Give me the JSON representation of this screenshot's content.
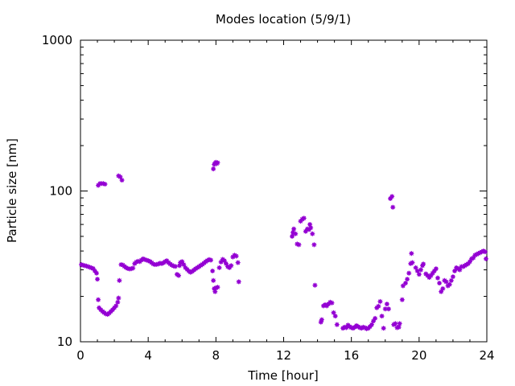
{
  "chart_data": {
    "type": "scatter",
    "title": "Modes location (5/9/1)",
    "xlabel": "Time [hour]",
    "ylabel": "Particle size [nm]",
    "xlim": [
      0,
      24
    ],
    "ylim": [
      10,
      1000
    ],
    "yscale": "log",
    "grid": false,
    "legend": "none",
    "marker_color": "#9400d3",
    "marker": "asterisk",
    "x_ticks": [
      0,
      4,
      8,
      12,
      16,
      20,
      24
    ],
    "x_tick_labels": [
      "0",
      "4",
      "8",
      "12",
      "16",
      "20",
      "24"
    ],
    "y_ticks": [
      10,
      100,
      1000
    ],
    "y_tick_labels": [
      "10",
      "100",
      "1000"
    ],
    "series": [
      {
        "points": [
          [
            0.05,
            32.5
          ],
          [
            0.15,
            32.2
          ],
          [
            0.25,
            32.0
          ],
          [
            0.35,
            31.8
          ],
          [
            0.45,
            31.5
          ],
          [
            0.55,
            31.2
          ],
          [
            0.65,
            30.9
          ],
          [
            0.75,
            30.6
          ],
          [
            0.85,
            29.5
          ],
          [
            0.95,
            28.5
          ],
          [
            1.0,
            26.0
          ],
          [
            1.05,
            19.0
          ],
          [
            1.1,
            16.8
          ],
          [
            1.2,
            16.3
          ],
          [
            1.3,
            15.9
          ],
          [
            1.4,
            15.6
          ],
          [
            1.5,
            15.3
          ],
          [
            1.6,
            15.2
          ],
          [
            1.7,
            15.5
          ],
          [
            1.8,
            15.9
          ],
          [
            1.9,
            16.3
          ],
          [
            2.0,
            16.8
          ],
          [
            2.1,
            17.3
          ],
          [
            2.2,
            18.3
          ],
          [
            2.25,
            19.5
          ],
          [
            2.3,
            25.5
          ],
          [
            2.4,
            32.5
          ],
          [
            2.5,
            32.3
          ],
          [
            2.6,
            31.6
          ],
          [
            2.7,
            31.0
          ],
          [
            2.8,
            30.6
          ],
          [
            2.9,
            30.4
          ],
          [
            3.0,
            30.5
          ],
          [
            3.1,
            30.8
          ],
          [
            3.2,
            33.0
          ],
          [
            3.3,
            33.8
          ],
          [
            3.4,
            34.2
          ],
          [
            3.5,
            34.0
          ],
          [
            3.6,
            34.8
          ],
          [
            3.7,
            35.5
          ],
          [
            3.8,
            35.1
          ],
          [
            3.9,
            34.8
          ],
          [
            4.0,
            34.5
          ],
          [
            4.1,
            34.1
          ],
          [
            4.2,
            33.5
          ],
          [
            4.3,
            32.8
          ],
          [
            4.4,
            32.5
          ],
          [
            4.5,
            32.6
          ],
          [
            4.6,
            32.8
          ],
          [
            4.7,
            33.2
          ],
          [
            4.8,
            33.0
          ],
          [
            4.9,
            33.4
          ],
          [
            5.0,
            34.0
          ],
          [
            5.1,
            34.5
          ],
          [
            5.2,
            33.5
          ],
          [
            5.3,
            32.8
          ],
          [
            5.4,
            32.2
          ],
          [
            5.5,
            31.8
          ],
          [
            5.6,
            31.6
          ],
          [
            5.7,
            28.0
          ],
          [
            5.8,
            27.5
          ],
          [
            5.85,
            32.0
          ],
          [
            5.9,
            33.5
          ],
          [
            6.0,
            34.0
          ],
          [
            6.1,
            32.5
          ],
          [
            6.2,
            31.0
          ],
          [
            6.3,
            30.2
          ],
          [
            6.4,
            29.4
          ],
          [
            6.5,
            28.9
          ],
          [
            6.6,
            29.3
          ],
          [
            6.7,
            29.9
          ],
          [
            6.8,
            30.5
          ],
          [
            6.9,
            31.0
          ],
          [
            7.0,
            31.5
          ],
          [
            7.1,
            32.1
          ],
          [
            7.2,
            32.6
          ],
          [
            7.3,
            33.3
          ],
          [
            7.4,
            34.0
          ],
          [
            7.5,
            34.6
          ],
          [
            7.6,
            35.1
          ],
          [
            7.7,
            34.8
          ],
          [
            7.8,
            29.5
          ],
          [
            7.85,
            25.5
          ],
          [
            7.9,
            22.5
          ],
          [
            7.95,
            21.5
          ],
          [
            8.0,
            22.8
          ],
          [
            8.1,
            23.0
          ],
          [
            8.2,
            31.0
          ],
          [
            8.3,
            33.8
          ],
          [
            8.4,
            35.2
          ],
          [
            8.5,
            34.5
          ],
          [
            8.6,
            33.0
          ],
          [
            8.7,
            31.5
          ],
          [
            8.8,
            31.0
          ],
          [
            8.9,
            32.0
          ],
          [
            9.0,
            36.5
          ],
          [
            9.1,
            37.5
          ],
          [
            9.2,
            37.0
          ],
          [
            9.3,
            33.5
          ],
          [
            9.35,
            25.0
          ],
          [
            1.05,
            109
          ],
          [
            1.15,
            112
          ],
          [
            1.25,
            112
          ],
          [
            1.35,
            112
          ],
          [
            1.45,
            111
          ],
          [
            2.25,
            126
          ],
          [
            2.35,
            124
          ],
          [
            2.45,
            118
          ],
          [
            7.85,
            140
          ],
          [
            7.9,
            150
          ],
          [
            7.95,
            153
          ],
          [
            8.0,
            155
          ],
          [
            8.05,
            152
          ],
          [
            8.1,
            154
          ],
          [
            12.5,
            50
          ],
          [
            12.55,
            53
          ],
          [
            12.6,
            56
          ],
          [
            12.7,
            52
          ],
          [
            12.8,
            44.5
          ],
          [
            12.9,
            44.0
          ],
          [
            13.0,
            63
          ],
          [
            13.1,
            65
          ],
          [
            13.2,
            66
          ],
          [
            13.3,
            54
          ],
          [
            13.4,
            56
          ],
          [
            13.5,
            55.5
          ],
          [
            13.55,
            60
          ],
          [
            13.6,
            57
          ],
          [
            13.7,
            52
          ],
          [
            13.8,
            44
          ],
          [
            13.85,
            23.7
          ],
          [
            14.2,
            13.5
          ],
          [
            14.25,
            14.0
          ],
          [
            14.35,
            17.3
          ],
          [
            14.45,
            17.6
          ],
          [
            14.55,
            17.3
          ],
          [
            14.65,
            17.8
          ],
          [
            14.75,
            18.3
          ],
          [
            14.85,
            18.1
          ],
          [
            14.95,
            15.6
          ],
          [
            15.05,
            14.8
          ],
          [
            15.15,
            13.0
          ],
          [
            15.5,
            12.3
          ],
          [
            15.6,
            12.5
          ],
          [
            15.7,
            12.4
          ],
          [
            15.8,
            12.9
          ],
          [
            15.9,
            12.6
          ],
          [
            16.0,
            12.4
          ],
          [
            16.1,
            12.3
          ],
          [
            16.2,
            12.5
          ],
          [
            16.3,
            12.8
          ],
          [
            16.4,
            12.6
          ],
          [
            16.5,
            12.4
          ],
          [
            16.6,
            12.3
          ],
          [
            16.7,
            12.5
          ],
          [
            16.8,
            12.4
          ],
          [
            16.9,
            12.2
          ],
          [
            17.0,
            12.3
          ],
          [
            17.1,
            12.6
          ],
          [
            17.2,
            13.0
          ],
          [
            17.3,
            13.7
          ],
          [
            17.4,
            14.3
          ],
          [
            17.5,
            16.8
          ],
          [
            17.6,
            17.2
          ],
          [
            17.7,
            18.5
          ],
          [
            17.8,
            14.8
          ],
          [
            17.9,
            12.3
          ],
          [
            18.0,
            16.5
          ],
          [
            18.1,
            17.8
          ],
          [
            18.2,
            16.5
          ],
          [
            18.3,
            89
          ],
          [
            18.4,
            92
          ],
          [
            18.45,
            78
          ],
          [
            18.5,
            13.0
          ],
          [
            18.6,
            13.2
          ],
          [
            18.7,
            12.4
          ],
          [
            18.8,
            12.5
          ],
          [
            18.85,
            13.2
          ],
          [
            19.0,
            19.0
          ],
          [
            19.05,
            23.5
          ],
          [
            19.2,
            24.5
          ],
          [
            19.3,
            26.0
          ],
          [
            19.4,
            28.5
          ],
          [
            19.5,
            33.0
          ],
          [
            19.55,
            38.5
          ],
          [
            19.6,
            33.5
          ],
          [
            19.8,
            31.0
          ],
          [
            19.9,
            29.5
          ],
          [
            20.0,
            28.0
          ],
          [
            20.1,
            30.0
          ],
          [
            20.2,
            32.0
          ],
          [
            20.25,
            32.8
          ],
          [
            20.4,
            28.2
          ],
          [
            20.5,
            27.5
          ],
          [
            20.6,
            26.7
          ],
          [
            20.7,
            27.5
          ],
          [
            20.8,
            28.5
          ],
          [
            20.9,
            29.5
          ],
          [
            21.0,
            30.5
          ],
          [
            21.1,
            26.5
          ],
          [
            21.2,
            24.5
          ],
          [
            21.3,
            21.5
          ],
          [
            21.4,
            22.5
          ],
          [
            21.5,
            25.5
          ],
          [
            21.6,
            25.0
          ],
          [
            21.7,
            23.5
          ],
          [
            21.8,
            24.0
          ],
          [
            21.9,
            25.5
          ],
          [
            22.0,
            27.0
          ],
          [
            22.1,
            29.5
          ],
          [
            22.2,
            31.0
          ],
          [
            22.3,
            30.5
          ],
          [
            22.4,
            30.0
          ],
          [
            22.5,
            31.5
          ],
          [
            22.6,
            31.5
          ],
          [
            22.7,
            32.0
          ],
          [
            22.8,
            32.5
          ],
          [
            22.9,
            33.0
          ],
          [
            23.0,
            34.0
          ],
          [
            23.1,
            35.5
          ],
          [
            23.2,
            36.0
          ],
          [
            23.3,
            37.5
          ],
          [
            23.4,
            38.0
          ],
          [
            23.5,
            38.5
          ],
          [
            23.6,
            39.0
          ],
          [
            23.7,
            39.5
          ],
          [
            23.8,
            40.0
          ],
          [
            23.9,
            39.5
          ],
          [
            23.95,
            35.5
          ]
        ]
      }
    ]
  }
}
